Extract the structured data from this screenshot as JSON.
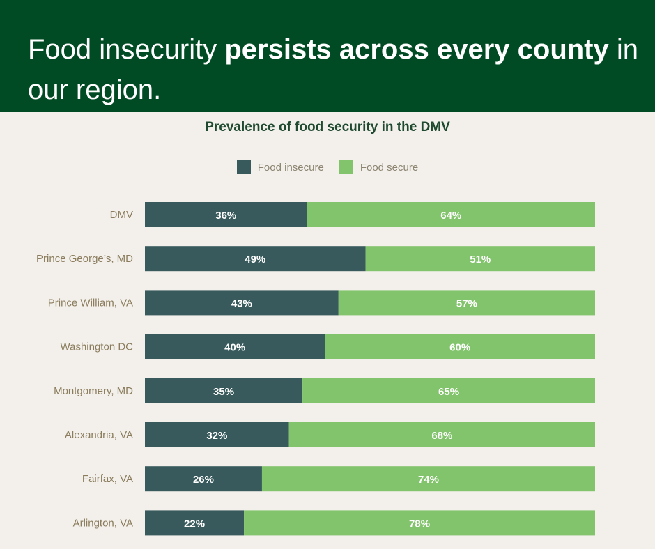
{
  "header": {
    "headline_plain_1": "Food insecurity ",
    "headline_bold": "persists across every county",
    "headline_plain_2": " in our region."
  },
  "chart_data": {
    "type": "bar",
    "orientation": "horizontal",
    "stacked": true,
    "title": "Prevalence of food security in the DMV",
    "categories": [
      "DMV",
      "Prince George’s, MD",
      "Prince William, VA",
      "Washington DC",
      "Montgomery, MD",
      "Alexandria, VA",
      "Fairfax, VA",
      "Arlington, VA"
    ],
    "series": [
      {
        "name": "Food insecure",
        "color": "#385a5c",
        "values": [
          36,
          49,
          43,
          40,
          35,
          32,
          26,
          22
        ]
      },
      {
        "name": "Food secure",
        "color": "#82c46c",
        "values": [
          64,
          51,
          57,
          60,
          65,
          68,
          74,
          78
        ]
      }
    ],
    "value_format": "{v}%",
    "xlim": [
      0,
      100
    ],
    "legend": "top-center",
    "grid": false
  }
}
